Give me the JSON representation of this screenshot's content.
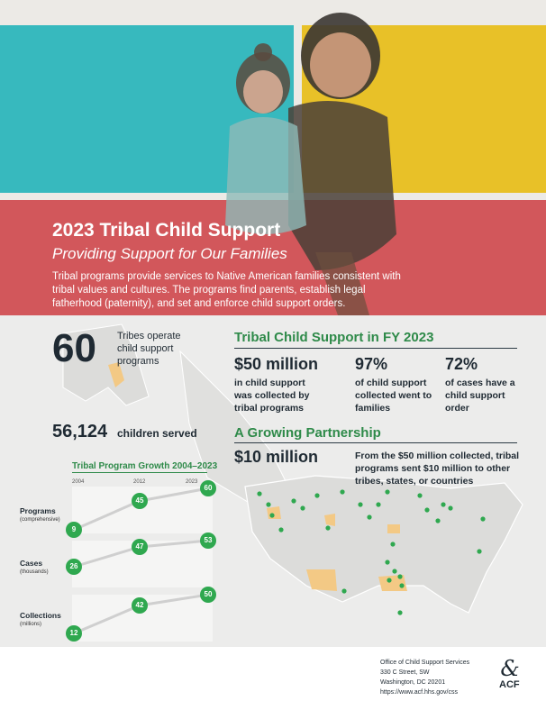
{
  "header": {
    "title": "2023 Tribal Child Support",
    "subtitle": "Providing Support for Our Families",
    "intro": "Tribal programs provide services to Native American families consistent with tribal values and cultures. The programs find parents, establish legal fatherhood (paternity), and set and enforce child support orders."
  },
  "tribes": {
    "value": "60",
    "label": "Tribes operate child support programs"
  },
  "children": {
    "value": "56,124",
    "label": "children served"
  },
  "fy": {
    "title": "Tribal Child Support in FY 2023",
    "stats": [
      {
        "value": "$50 million",
        "text": "in child support was collected by tribal programs"
      },
      {
        "value": "97%",
        "text": "of child support collected went to families"
      },
      {
        "value": "72%",
        "text": "of cases have a child support order"
      }
    ]
  },
  "partnership": {
    "title": "A Growing Partnership",
    "value": "$10 million",
    "text": "From the $50 million collected, tribal programs sent $10 million to other tribes, states, or countries"
  },
  "growth": {
    "title": "Tribal Program Growth 2004–2023",
    "years": [
      "2004",
      "2012",
      "2023"
    ],
    "rows": [
      {
        "label": "Programs",
        "sublabel": "(comprehensive)",
        "values": [
          "9",
          "45",
          "60"
        ]
      },
      {
        "label": "Cases",
        "sublabel": "(thousands)",
        "values": [
          "26",
          "47",
          "53"
        ]
      },
      {
        "label": "Collections",
        "sublabel": "(millions)",
        "values": [
          "12",
          "42",
          "50"
        ]
      }
    ]
  },
  "footer": {
    "org": "Office of Child Support Services",
    "street": "330 C Street, SW",
    "city": "Washington, DC 20201",
    "url": "https://www.acf.hhs.gov/css",
    "logo_text": "ACF"
  },
  "colors": {
    "teal": "#37b9be",
    "yellow": "#e8c128",
    "red": "#d2575b",
    "green": "#2fa84f",
    "green_title": "#2e8a49",
    "navy": "#1f2a33"
  }
}
